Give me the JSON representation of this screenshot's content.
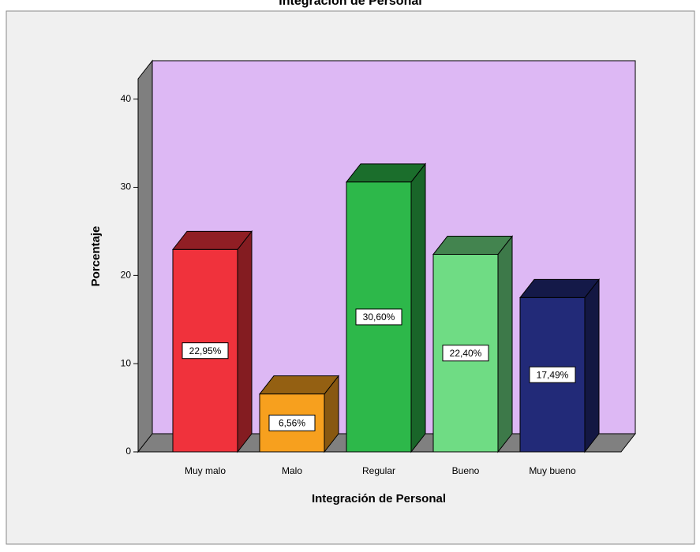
{
  "chart_data": {
    "type": "bar3d",
    "title": "Integración de Personal",
    "x_label": "Integración de Personal",
    "y_label": "Porcentaje",
    "categories": [
      "Muy malo",
      "Malo",
      "Regular",
      "Bueno",
      "Muy bueno"
    ],
    "values": [
      22.95,
      6.56,
      30.6,
      22.4,
      17.49
    ],
    "value_labels": [
      "22,95%",
      "6,56%",
      "30,60%",
      "22,40%",
      "17,49%"
    ],
    "colors": [
      "#f0323c",
      "#f7a01e",
      "#2db84a",
      "#6fdc84",
      "#222a78"
    ],
    "ylim": [
      0,
      42.3
    ],
    "yticks": [
      0,
      10,
      20,
      30,
      40
    ]
  }
}
